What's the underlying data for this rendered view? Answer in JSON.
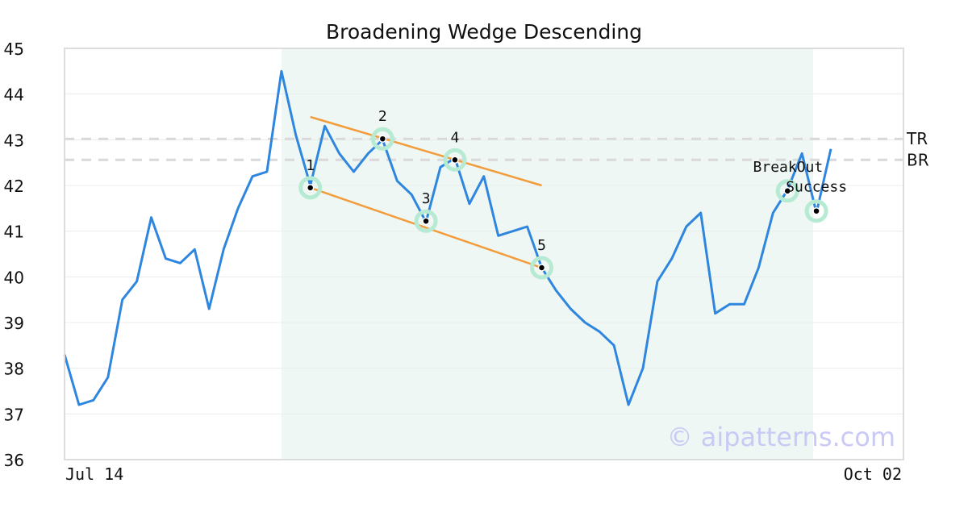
{
  "chart_data": {
    "type": "line",
    "title": "Broadening Wedge Descending",
    "ylim": [
      36,
      45
    ],
    "y_ticks": [
      "36",
      "37",
      "38",
      "39",
      "40",
      "41",
      "42",
      "43",
      "44",
      "45"
    ],
    "x_tick_labels": [
      "Jul 14",
      "Oct 02"
    ],
    "watermark": "© aipatterns.com",
    "colors": {
      "price_line": "#2e86de",
      "trend_lines": "#f39c3c",
      "highlight": "#eef7f3",
      "marker_ring": "#b7ead3",
      "ref_lines": "#d9d9d9"
    },
    "series": [
      {
        "values": [
          38.3,
          37.2,
          37.3,
          37.8,
          39.5,
          39.9,
          41.3,
          40.4,
          40.3,
          40.6,
          39.3,
          40.6,
          41.5,
          42.2,
          42.3,
          44.5,
          43.1,
          42.0,
          43.3,
          42.7,
          42.3,
          42.7,
          43.0,
          42.1,
          41.8,
          41.2,
          42.4,
          42.6,
          41.6,
          42.2,
          40.9,
          41.0,
          41.1,
          40.2,
          39.7,
          39.3,
          39.0,
          38.8,
          38.5,
          37.2,
          38.0,
          39.9,
          40.4,
          41.1,
          41.4,
          39.2,
          39.4,
          39.4,
          40.2,
          41.4,
          41.9,
          42.7,
          41.4,
          42.8
        ]
      }
    ],
    "highlight_range": [
      15,
      52
    ],
    "reference_lines": [
      {
        "label": "TR",
        "y": 43.02
      },
      {
        "label": "BR",
        "y": 42.56
      }
    ],
    "trend_lines": [
      {
        "x1": 17,
        "y1": 43.5,
        "x2": 33,
        "y2": 42.0
      },
      {
        "x1": 17,
        "y1": 41.95,
        "x2": 33,
        "y2": 40.2
      }
    ],
    "points": [
      {
        "label": "1",
        "x": 17,
        "y": 41.95
      },
      {
        "label": "2",
        "x": 22,
        "y": 43.02
      },
      {
        "label": "3",
        "x": 25,
        "y": 41.22
      },
      {
        "label": "4",
        "x": 27,
        "y": 42.56
      },
      {
        "label": "5",
        "x": 33,
        "y": 40.2
      },
      {
        "label": "BreakOut",
        "x": 50,
        "y": 41.88
      },
      {
        "label": "Success",
        "x": 52,
        "y": 41.44
      }
    ]
  }
}
